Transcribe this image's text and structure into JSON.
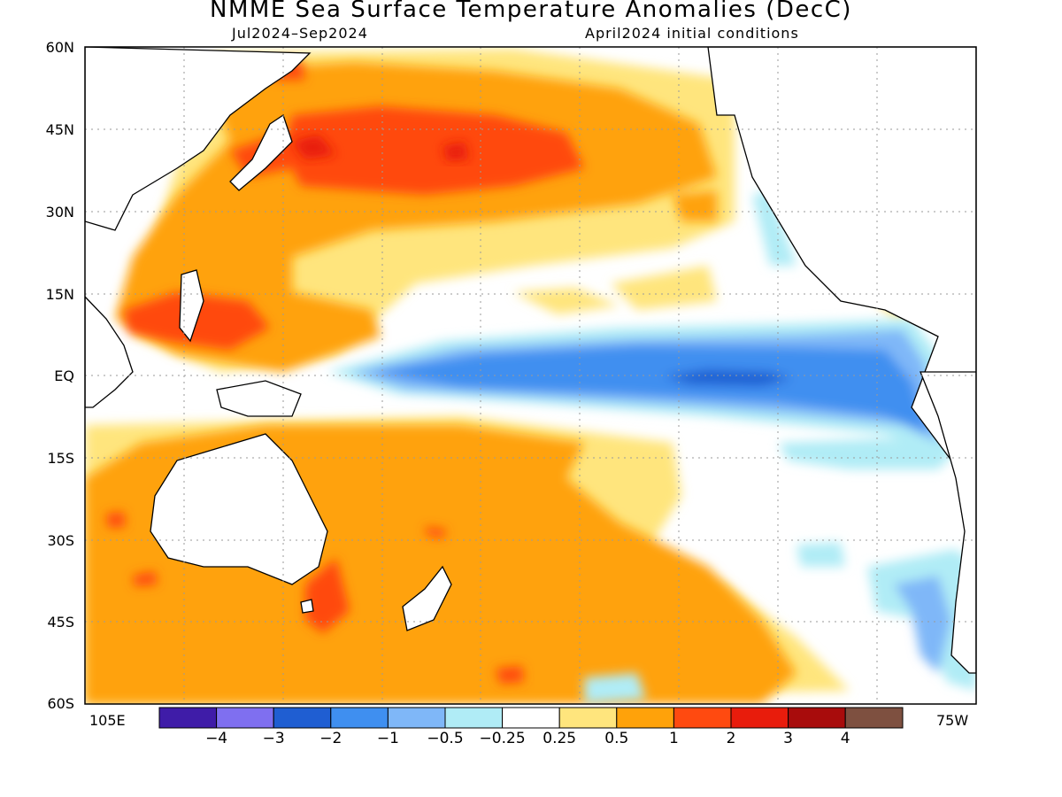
{
  "title": "NMME Sea Surface Temperature Anomalies (DecC)",
  "subtitle_left": "Jul2024–Sep2024",
  "subtitle_right": "April2024 initial conditions",
  "map": {
    "region": "Pacific Ocean",
    "lon_range": [
      105,
      285
    ],
    "lat_range": [
      -60,
      60
    ],
    "grid": true,
    "lat_labels": [
      "60N",
      "45N",
      "30N",
      "15N",
      "EQ",
      "15S",
      "30S",
      "45S",
      "60S"
    ],
    "lon_labels": [
      "105E",
      "75W"
    ]
  },
  "colorbar": {
    "colors": [
      "#3f1ca8",
      "#7f6ff0",
      "#1f5ed2",
      "#3f8ff0",
      "#7fb7f8",
      "#b0ecf6",
      "#ffffff",
      "#ffe57d",
      "#ffa20a",
      "#ff4a10",
      "#e81c0c",
      "#a80c0c",
      "#7e5040"
    ],
    "labels": [
      "−4",
      "−3",
      "−2",
      "−1",
      "−0.5",
      "−0.25",
      "0.25",
      "0.5",
      "1",
      "2",
      "3",
      "4"
    ]
  },
  "legend_colors": {
    "land": "#ffffff",
    "coast": "#000000",
    "neutral": "#ffffff"
  }
}
